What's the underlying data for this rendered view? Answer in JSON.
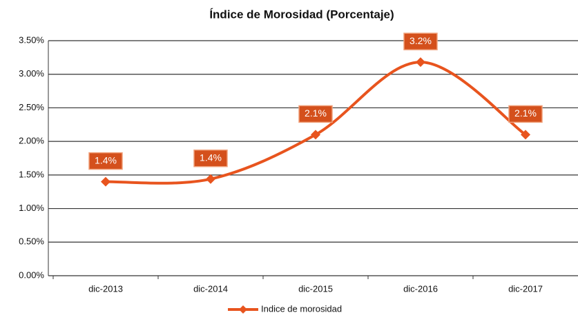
{
  "chart_data": {
    "type": "line",
    "title": "Índice de Morosidad (Porcentaje)",
    "categories": [
      "dic-2013",
      "dic-2014",
      "dic-2015",
      "dic-2016",
      "dic-2017"
    ],
    "series": [
      {
        "name": "Indice de morosidad",
        "color": "#e8541e",
        "values": [
          1.4,
          1.44,
          2.1,
          3.18,
          2.1
        ],
        "value_labels": [
          "1.4%",
          "1.4%",
          "2.1%",
          "3.2%",
          "2.1%"
        ]
      }
    ],
    "ylim": [
      0,
      3.5
    ],
    "yticks": [
      {
        "value": 0,
        "label": "0.00%"
      },
      {
        "value": 0.5,
        "label": "0.50%"
      },
      {
        "value": 1,
        "label": "1.00%"
      },
      {
        "value": 1.5,
        "label": "1.50%"
      },
      {
        "value": 2,
        "label": "2.00%"
      },
      {
        "value": 2.5,
        "label": "2.50%"
      },
      {
        "value": 3,
        "label": "3.00%"
      },
      {
        "value": 3.5,
        "label": "3.50%"
      }
    ],
    "grid": true,
    "smooth": true,
    "legend": "bottom"
  }
}
